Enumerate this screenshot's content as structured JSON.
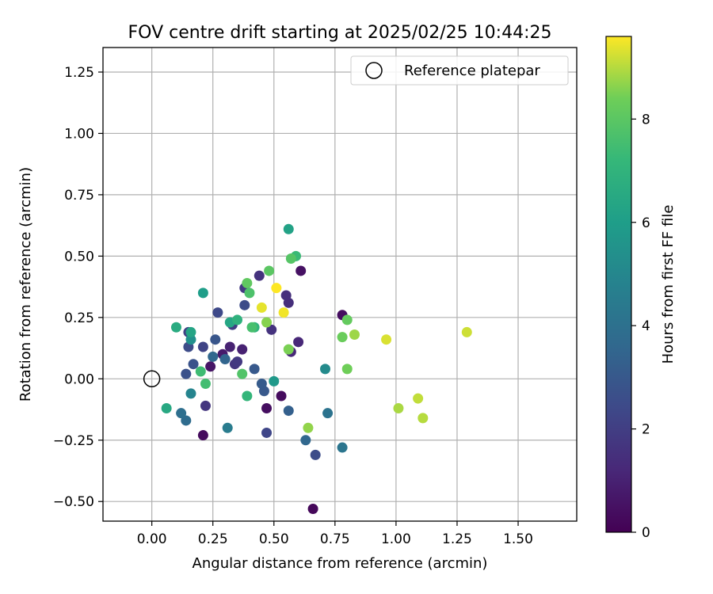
{
  "chart_data": {
    "type": "scatter",
    "title": "FOV centre drift starting at 2025/02/25 10:44:25",
    "xlabel": "Angular distance from reference (arcmin)",
    "ylabel": "Rotation from reference (arcmin)",
    "xlim": [
      -0.2,
      1.74
    ],
    "ylim": [
      -0.58,
      1.35
    ],
    "xticks": [
      0.0,
      0.25,
      0.5,
      0.75,
      1.0,
      1.25,
      1.5
    ],
    "xtick_labels": [
      "0.00",
      "0.25",
      "0.50",
      "0.75",
      "1.00",
      "1.25",
      "1.50"
    ],
    "yticks": [
      -0.5,
      -0.25,
      0.0,
      0.25,
      0.5,
      0.75,
      1.0,
      1.25
    ],
    "ytick_labels": [
      "−0.50",
      "−0.25",
      "0.00",
      "0.25",
      "0.50",
      "0.75",
      "1.00",
      "1.25"
    ],
    "grid": true,
    "legend": {
      "placement": "upper right",
      "entries": [
        "Reference platepar"
      ]
    },
    "reference_point": {
      "x": 0.0,
      "y": 0.0,
      "label": "Reference platepar"
    },
    "colorbar": {
      "label": "Hours from first FF file",
      "colormap": "viridis",
      "range": [
        0,
        9.6
      ],
      "ticks": [
        0,
        2,
        4,
        6,
        8
      ],
      "tick_labels": [
        "0",
        "2",
        "4",
        "6",
        "8"
      ]
    },
    "point_fields": [
      "x",
      "y",
      "hours"
    ],
    "points": [
      [
        0.21,
        -0.23,
        0.3
      ],
      [
        0.66,
        -0.53,
        0.2
      ],
      [
        0.47,
        -0.12,
        0.4
      ],
      [
        0.53,
        -0.07,
        0.3
      ],
      [
        0.61,
        0.44,
        0.5
      ],
      [
        0.78,
        0.26,
        0.4
      ],
      [
        0.24,
        0.05,
        0.6
      ],
      [
        0.29,
        0.1,
        0.8
      ],
      [
        0.32,
        0.13,
        1.0
      ],
      [
        0.37,
        0.12,
        1.0
      ],
      [
        0.6,
        0.15,
        1.2
      ],
      [
        0.57,
        0.11,
        1.2
      ],
      [
        0.56,
        0.31,
        1.4
      ],
      [
        0.55,
        0.34,
        1.5
      ],
      [
        0.44,
        0.42,
        1.6
      ],
      [
        0.49,
        0.2,
        1.6
      ],
      [
        0.34,
        0.06,
        1.7
      ],
      [
        0.35,
        0.07,
        1.8
      ],
      [
        0.22,
        -0.11,
        1.7
      ],
      [
        0.38,
        0.37,
        1.8
      ],
      [
        0.33,
        0.22,
        2.0
      ],
      [
        0.47,
        -0.22,
        2.3
      ],
      [
        0.67,
        -0.31,
        2.5
      ],
      [
        0.15,
        0.19,
        2.1
      ],
      [
        0.21,
        0.13,
        2.2
      ],
      [
        0.27,
        0.27,
        2.4
      ],
      [
        0.38,
        0.3,
        2.5
      ],
      [
        0.15,
        0.13,
        2.5
      ],
      [
        0.14,
        0.02,
        2.7
      ],
      [
        0.17,
        0.06,
        2.8
      ],
      [
        0.26,
        0.16,
        2.9
      ],
      [
        0.42,
        0.04,
        3.0
      ],
      [
        0.46,
        -0.05,
        3.0
      ],
      [
        0.45,
        -0.02,
        3.1
      ],
      [
        0.56,
        -0.13,
        3.3
      ],
      [
        0.3,
        0.08,
        3.5
      ],
      [
        0.25,
        0.09,
        3.6
      ],
      [
        0.63,
        -0.25,
        3.6
      ],
      [
        0.14,
        -0.17,
        3.8
      ],
      [
        0.12,
        -0.14,
        3.9
      ],
      [
        0.72,
        -0.14,
        4.1
      ],
      [
        0.78,
        -0.28,
        4.2
      ],
      [
        0.31,
        -0.2,
        4.5
      ],
      [
        0.16,
        -0.06,
        4.9
      ],
      [
        0.71,
        0.04,
        5.2
      ],
      [
        0.16,
        0.16,
        5.4
      ],
      [
        0.5,
        -0.01,
        5.8
      ],
      [
        0.21,
        0.35,
        6.0
      ],
      [
        0.56,
        0.61,
        6.2
      ],
      [
        0.16,
        0.19,
        6.3
      ],
      [
        0.32,
        0.23,
        6.4
      ],
      [
        0.06,
        -0.12,
        6.5
      ],
      [
        0.1,
        0.21,
        6.6
      ],
      [
        0.35,
        0.24,
        6.9
      ],
      [
        0.42,
        0.21,
        7.0
      ],
      [
        0.39,
        -0.07,
        7.1
      ],
      [
        0.59,
        0.5,
        7.3
      ],
      [
        0.2,
        0.03,
        7.4
      ],
      [
        0.22,
        -0.02,
        7.5
      ],
      [
        0.41,
        0.21,
        7.6
      ],
      [
        0.4,
        0.35,
        7.7
      ],
      [
        0.37,
        0.02,
        7.8
      ],
      [
        0.57,
        0.49,
        7.9
      ],
      [
        0.48,
        0.44,
        8.0
      ],
      [
        0.39,
        0.39,
        8.1
      ],
      [
        0.8,
        0.24,
        8.2
      ],
      [
        0.78,
        0.17,
        8.3
      ],
      [
        0.8,
        0.04,
        8.4
      ],
      [
        0.56,
        0.12,
        8.5
      ],
      [
        0.47,
        0.23,
        8.6
      ],
      [
        0.64,
        -0.2,
        8.7
      ],
      [
        0.83,
        0.18,
        8.8
      ],
      [
        1.01,
        -0.12,
        8.9
      ],
      [
        1.11,
        -0.16,
        9.0
      ],
      [
        1.09,
        -0.08,
        9.1
      ],
      [
        1.29,
        0.19,
        9.2
      ],
      [
        0.96,
        0.16,
        9.3
      ],
      [
        0.45,
        0.29,
        9.4
      ],
      [
        0.54,
        0.27,
        9.5
      ],
      [
        0.51,
        0.37,
        9.6
      ]
    ]
  }
}
